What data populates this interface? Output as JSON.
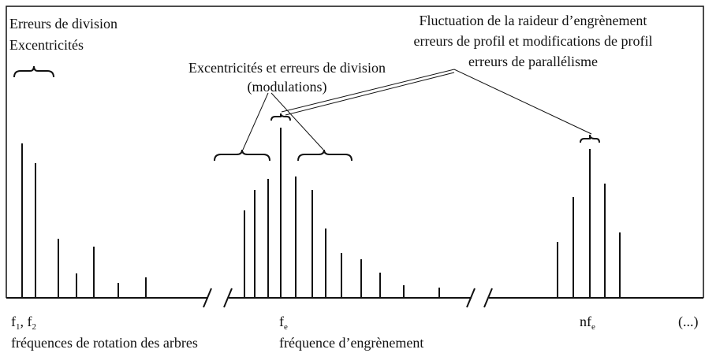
{
  "labels": {
    "shaft_errors": [
      "Erreurs de division",
      "Excentricités"
    ],
    "modulations": [
      "Excentricités et erreurs de division",
      "(modulations)"
    ],
    "mesh_stiffness": [
      "Fluctuation de la raideur d’engrènement",
      "erreurs de profil et modifications de profil",
      "erreurs de parallélisme"
    ],
    "rotation_freq": {
      "parts": [
        "f",
        "1",
        ", f",
        "2"
      ],
      "caption": "fréquences de rotation des arbres"
    },
    "mesh_freq": {
      "parts": [
        "f",
        "e"
      ],
      "caption": "fréquence d’engrènement"
    },
    "harmonic_freq": {
      "parts": [
        "nf",
        "e"
      ]
    },
    "continuation": "(...)"
  }
}
